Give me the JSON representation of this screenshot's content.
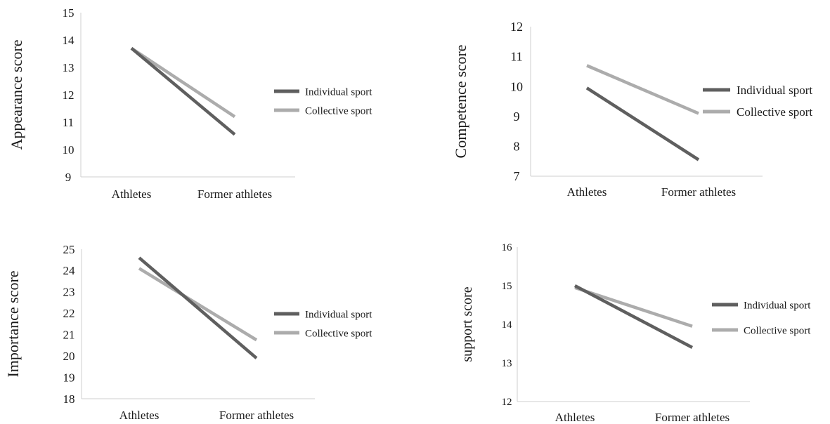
{
  "colors": {
    "individual": "#5f5f5f",
    "collective": "#acacac",
    "axis": "#cfcfcf"
  },
  "chart_data": [
    {
      "type": "line",
      "title": "",
      "xlabel": "",
      "ylabel": "Appearance score",
      "categories": [
        "Athletes",
        "Former athletes"
      ],
      "ylim": [
        9,
        15
      ],
      "yticks": [
        9,
        10,
        11,
        12,
        13,
        14,
        15
      ],
      "grid": false,
      "legend_position": "right",
      "series": [
        {
          "name": "Individual sport",
          "values": [
            13.7,
            10.55
          ]
        },
        {
          "name": "Collective sport",
          "values": [
            13.7,
            11.2
          ]
        }
      ]
    },
    {
      "type": "line",
      "title": "",
      "xlabel": "",
      "ylabel": "Competence  score",
      "categories": [
        "Athletes",
        "Former athletes"
      ],
      "ylim": [
        7,
        12
      ],
      "yticks": [
        7,
        8,
        9,
        10,
        11,
        12
      ],
      "grid": false,
      "legend_position": "right",
      "series": [
        {
          "name": "Individual sport",
          "values": [
            9.95,
            7.55
          ]
        },
        {
          "name": "Collective sport",
          "values": [
            10.7,
            9.1
          ]
        }
      ]
    },
    {
      "type": "line",
      "title": "",
      "xlabel": "",
      "ylabel": "Importance  score",
      "categories": [
        "Athletes",
        "Former athletes"
      ],
      "ylim": [
        18,
        25
      ],
      "yticks": [
        18,
        19,
        20,
        21,
        22,
        23,
        24,
        25
      ],
      "grid": false,
      "legend_position": "right",
      "series": [
        {
          "name": "Individual sport",
          "values": [
            24.6,
            19.9
          ]
        },
        {
          "name": "Collective sport",
          "values": [
            24.1,
            20.75
          ]
        }
      ]
    },
    {
      "type": "line",
      "title": "",
      "xlabel": "",
      "ylabel": "support score",
      "categories": [
        "Athletes",
        "Former athletes"
      ],
      "ylim": [
        12,
        16
      ],
      "yticks": [
        12,
        13,
        14,
        15,
        16
      ],
      "grid": false,
      "legend_position": "right",
      "series": [
        {
          "name": "Individual sport",
          "values": [
            15.0,
            13.4
          ]
        },
        {
          "name": "Collective sport",
          "values": [
            14.95,
            13.95
          ]
        }
      ]
    }
  ]
}
